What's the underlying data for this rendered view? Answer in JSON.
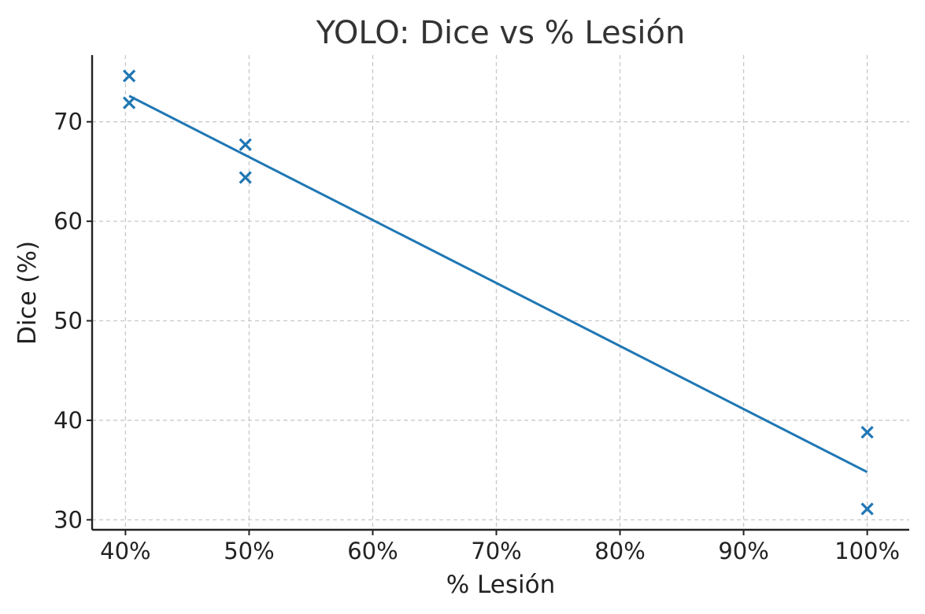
{
  "chart_data": {
    "type": "scatter",
    "title": "YOLO: Dice vs % Lesión",
    "xlabel": "% Lesión",
    "ylabel": "Dice (%)",
    "xlim": [
      37.3,
      103.4
    ],
    "ylim": [
      29.0,
      76.7
    ],
    "x_ticks": [
      40,
      50,
      60,
      70,
      80,
      90,
      100
    ],
    "x_tick_labels": [
      "40%",
      "50%",
      "60%",
      "70%",
      "80%",
      "90%",
      "100%"
    ],
    "y_ticks": [
      30,
      40,
      50,
      60,
      70
    ],
    "y_tick_labels": [
      "30",
      "40",
      "50",
      "60",
      "70"
    ],
    "grid": true,
    "color": "#1f77b4",
    "marker": "x",
    "points": [
      {
        "x": 40.3,
        "y": 74.6
      },
      {
        "x": 40.3,
        "y": 71.9
      },
      {
        "x": 49.7,
        "y": 67.7
      },
      {
        "x": 49.7,
        "y": 64.4
      },
      {
        "x": 100.0,
        "y": 38.8
      },
      {
        "x": 100.0,
        "y": 31.1
      }
    ],
    "fit_line": {
      "x": [
        40.3,
        100.0
      ],
      "y": [
        72.6,
        34.8
      ]
    }
  }
}
